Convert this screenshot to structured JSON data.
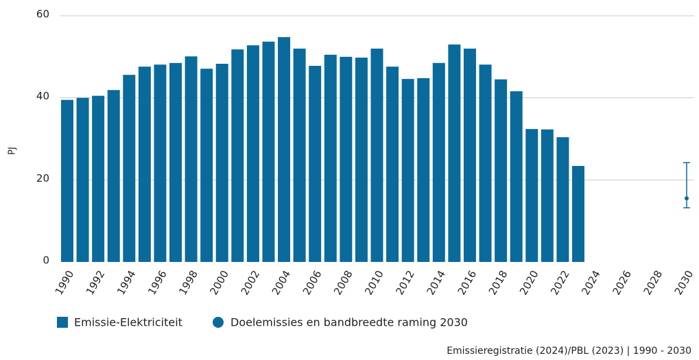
{
  "chart_data": {
    "type": "bar",
    "y_label": "PJ",
    "source": "Emissieregistratie (2024)/PBL (2023) | 1990 - 2030",
    "categories": [
      "1990",
      null,
      "1992",
      null,
      "1994",
      null,
      "1996",
      null,
      "1998",
      null,
      "2000",
      null,
      "2002",
      null,
      "2004",
      null,
      "2006",
      null,
      "2008",
      null,
      "2010",
      null,
      "2012",
      null,
      "2014",
      null,
      "2016",
      null,
      "2018",
      null,
      "2020",
      null,
      "2022",
      null,
      "2024",
      null,
      "2026",
      null,
      "2028",
      null,
      "2030"
    ],
    "series": [
      {
        "name": "Emissie-Elektriciteit",
        "color": "#0a6a9c",
        "values": [
          39.5,
          40.0,
          40.5,
          41.9,
          45.6,
          47.6,
          48.1,
          48.5,
          50.1,
          47.1,
          48.3,
          51.8,
          52.8,
          53.7,
          54.8,
          52.0,
          47.8,
          50.5,
          50.0,
          49.8,
          52.0,
          47.6,
          44.6,
          44.8,
          48.5,
          53.0,
          52.0,
          48.1,
          44.5,
          41.6,
          32.4,
          32.3,
          30.4,
          23.4,
          null,
          null,
          null,
          null,
          null,
          null,
          null
        ]
      },
      {
        "name": "Doelemissies en bandbreedte raming 2030",
        "color": "#0a6a9c",
        "values": [
          null,
          null,
          null,
          null,
          null,
          null,
          null,
          null,
          null,
          null,
          null,
          null,
          null,
          null,
          null,
          null,
          null,
          null,
          null,
          null,
          null,
          null,
          null,
          null,
          null,
          null,
          null,
          null,
          null,
          null,
          null,
          null,
          null,
          null,
          null,
          null,
          null,
          null,
          null,
          null,
          15.5
        ],
        "low": [
          null,
          null,
          null,
          null,
          null,
          null,
          null,
          null,
          null,
          null,
          null,
          null,
          null,
          null,
          null,
          null,
          null,
          null,
          null,
          null,
          null,
          null,
          null,
          null,
          null,
          null,
          null,
          null,
          null,
          null,
          null,
          null,
          null,
          null,
          null,
          null,
          null,
          null,
          null,
          null,
          13.2
        ],
        "high": [
          null,
          null,
          null,
          null,
          null,
          null,
          null,
          null,
          null,
          null,
          null,
          null,
          null,
          null,
          null,
          null,
          null,
          null,
          null,
          null,
          null,
          null,
          null,
          null,
          null,
          null,
          null,
          null,
          null,
          null,
          null,
          null,
          null,
          null,
          null,
          null,
          null,
          null,
          null,
          null,
          24.2
        ]
      }
    ],
    "ylim": [
      0,
      60
    ],
    "yticks": [
      0,
      20,
      40,
      60
    ],
    "grid": true
  }
}
